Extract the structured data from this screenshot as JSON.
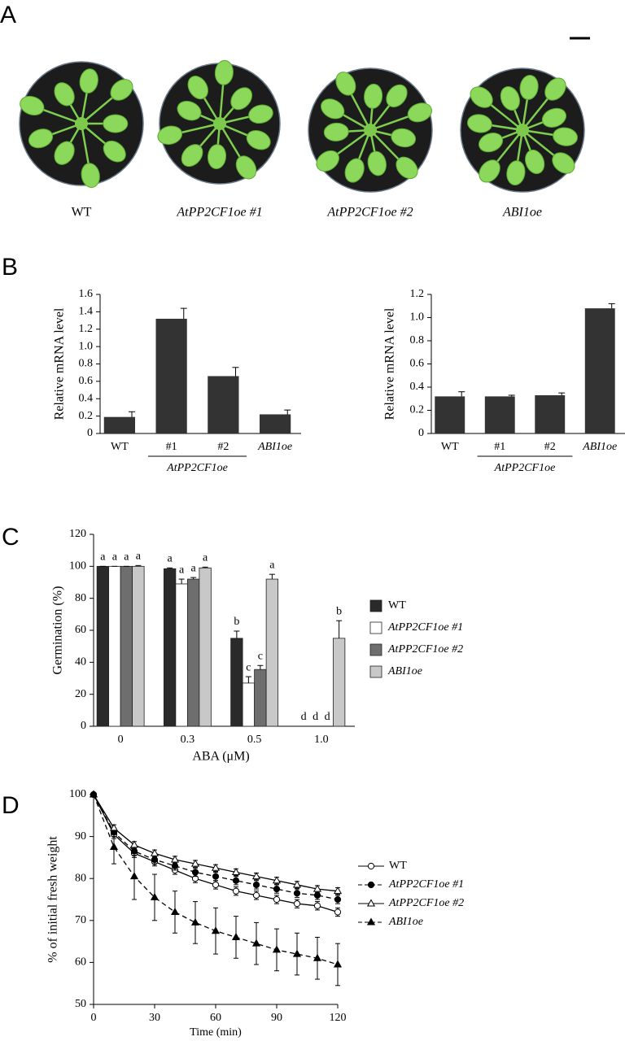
{
  "panel_letters": [
    "A",
    "B",
    "C",
    "D"
  ],
  "panel_a": {
    "labels": [
      "WT",
      "AtPP2CF1oe #1",
      "AtPP2CF1oe #2",
      "ABI1oe"
    ]
  },
  "chart_data": [
    {
      "type": "bar",
      "ylabel": "Relative mRNA level",
      "categories": [
        "WT",
        "#1",
        "#2",
        "ABI1oe"
      ],
      "group_label": "AtPP2CF1oe",
      "values": [
        0.19,
        1.32,
        0.66,
        0.22
      ],
      "errors": [
        0.06,
        0.12,
        0.1,
        0.05
      ],
      "color": "#333333",
      "ylim": [
        0,
        1.6
      ],
      "yticks": [
        0,
        0.2,
        0.4,
        0.6,
        0.8,
        {
          "value": 1,
          "label": "1.0"
        },
        1.2,
        1.4,
        1.6
      ]
    },
    {
      "type": "bar",
      "ylabel": "Relative mRNA level",
      "categories": [
        "WT",
        "#1",
        "#2",
        "ABI1oe"
      ],
      "group_label": "AtPP2CF1oe",
      "values": [
        0.32,
        0.32,
        0.33,
        1.08
      ],
      "errors": [
        0.04,
        0.01,
        0.02,
        0.04
      ],
      "color": "#333333",
      "ylim": [
        0,
        1.2
      ],
      "yticks": [
        0,
        0.2,
        0.4,
        0.6,
        0.8,
        {
          "value": 1,
          "label": "1.0"
        },
        1.2
      ]
    },
    {
      "type": "bar",
      "ylabel": "Germination (%)",
      "xlabel": "ABA (μM)",
      "categories": [
        "0",
        "0.3",
        "0.5",
        "1.0"
      ],
      "series": [
        {
          "name": "WT",
          "color": "#2a2a2a",
          "values": [
            100,
            98.5,
            55,
            0
          ],
          "errors": [
            0,
            0.5,
            4.5,
            0
          ],
          "letters": [
            "a",
            "a",
            "b",
            "d"
          ]
        },
        {
          "name": "AtPP2CF1oe #1",
          "color": "#ffffff",
          "values": [
            100,
            89,
            27,
            0
          ],
          "errors": [
            0,
            3,
            4,
            0
          ],
          "letters": [
            "a",
            "a",
            "c",
            "d"
          ]
        },
        {
          "name": "AtPP2CF1oe #2",
          "color": "#6e6e6e",
          "values": [
            100,
            92,
            35.5,
            0
          ],
          "errors": [
            0,
            1,
            2.5,
            0
          ],
          "letters": [
            "a",
            "a",
            "c",
            "d"
          ]
        },
        {
          "name": "ABI1oe",
          "color": "#c8c8c8",
          "values": [
            100,
            99,
            92,
            55
          ],
          "errors": [
            0.5,
            0.5,
            3,
            11
          ],
          "letters": [
            "a",
            "a",
            "a",
            "b"
          ]
        }
      ],
      "ylim": [
        0,
        120
      ],
      "yticks": [
        0,
        20,
        40,
        60,
        80,
        100,
        120
      ],
      "legend": "right"
    },
    {
      "type": "line",
      "ylabel": "% of initial fresh weight",
      "xlabel": "Time (min)",
      "x": [
        0,
        10,
        20,
        30,
        40,
        50,
        60,
        70,
        80,
        90,
        100,
        110,
        120
      ],
      "series": [
        {
          "name": "WT",
          "color": "#000000",
          "marker": "circle",
          "marker_fill": "#ffffff",
          "dashed": false,
          "values": [
            100,
            90.5,
            86,
            84,
            82,
            80,
            78.5,
            77,
            76,
            75,
            74,
            73.5,
            72
          ],
          "errors": [
            0,
            1,
            1,
            1,
            1,
            1,
            1,
            1,
            1,
            1,
            1,
            1,
            1
          ]
        },
        {
          "name": "AtPP2CF1oe #1",
          "color": "#000000",
          "marker": "circle",
          "marker_fill": "#000000",
          "dashed": true,
          "values": [
            100,
            91,
            86.5,
            84.5,
            83,
            81.5,
            80.5,
            79.5,
            78.5,
            77.5,
            76.5,
            76,
            75
          ],
          "errors": [
            0,
            1,
            1,
            1,
            1,
            1,
            1,
            1,
            1,
            1,
            1,
            1,
            1
          ]
        },
        {
          "name": "AtPP2CF1oe #2",
          "color": "#000000",
          "marker": "triangle",
          "marker_fill": "#ffffff",
          "dashed": false,
          "values": [
            100,
            92,
            88,
            86,
            84.5,
            83.5,
            82.5,
            81.5,
            80.5,
            79.5,
            78.5,
            77.5,
            77
          ],
          "errors": [
            0,
            0.8,
            0.8,
            0.8,
            0.8,
            0.8,
            0.8,
            0.8,
            0.8,
            0.8,
            0.8,
            0.8,
            0.8
          ]
        },
        {
          "name": "ABI1oe",
          "color": "#000000",
          "marker": "triangle",
          "marker_fill": "#000000",
          "dashed": true,
          "values": [
            100,
            87.5,
            80.5,
            75.5,
            72,
            69.5,
            67.5,
            66,
            64.5,
            63,
            62,
            61,
            59.5
          ],
          "errors": [
            0,
            4,
            5.5,
            5.5,
            5,
            5,
            5.5,
            5,
            5,
            5,
            5,
            5,
            5
          ]
        }
      ],
      "xlim": [
        0,
        120
      ],
      "xticks": [
        0,
        30,
        60,
        90,
        120
      ],
      "ylim": [
        50,
        100
      ],
      "yticks": [
        50,
        60,
        70,
        80,
        90,
        100
      ],
      "legend": "right"
    }
  ]
}
